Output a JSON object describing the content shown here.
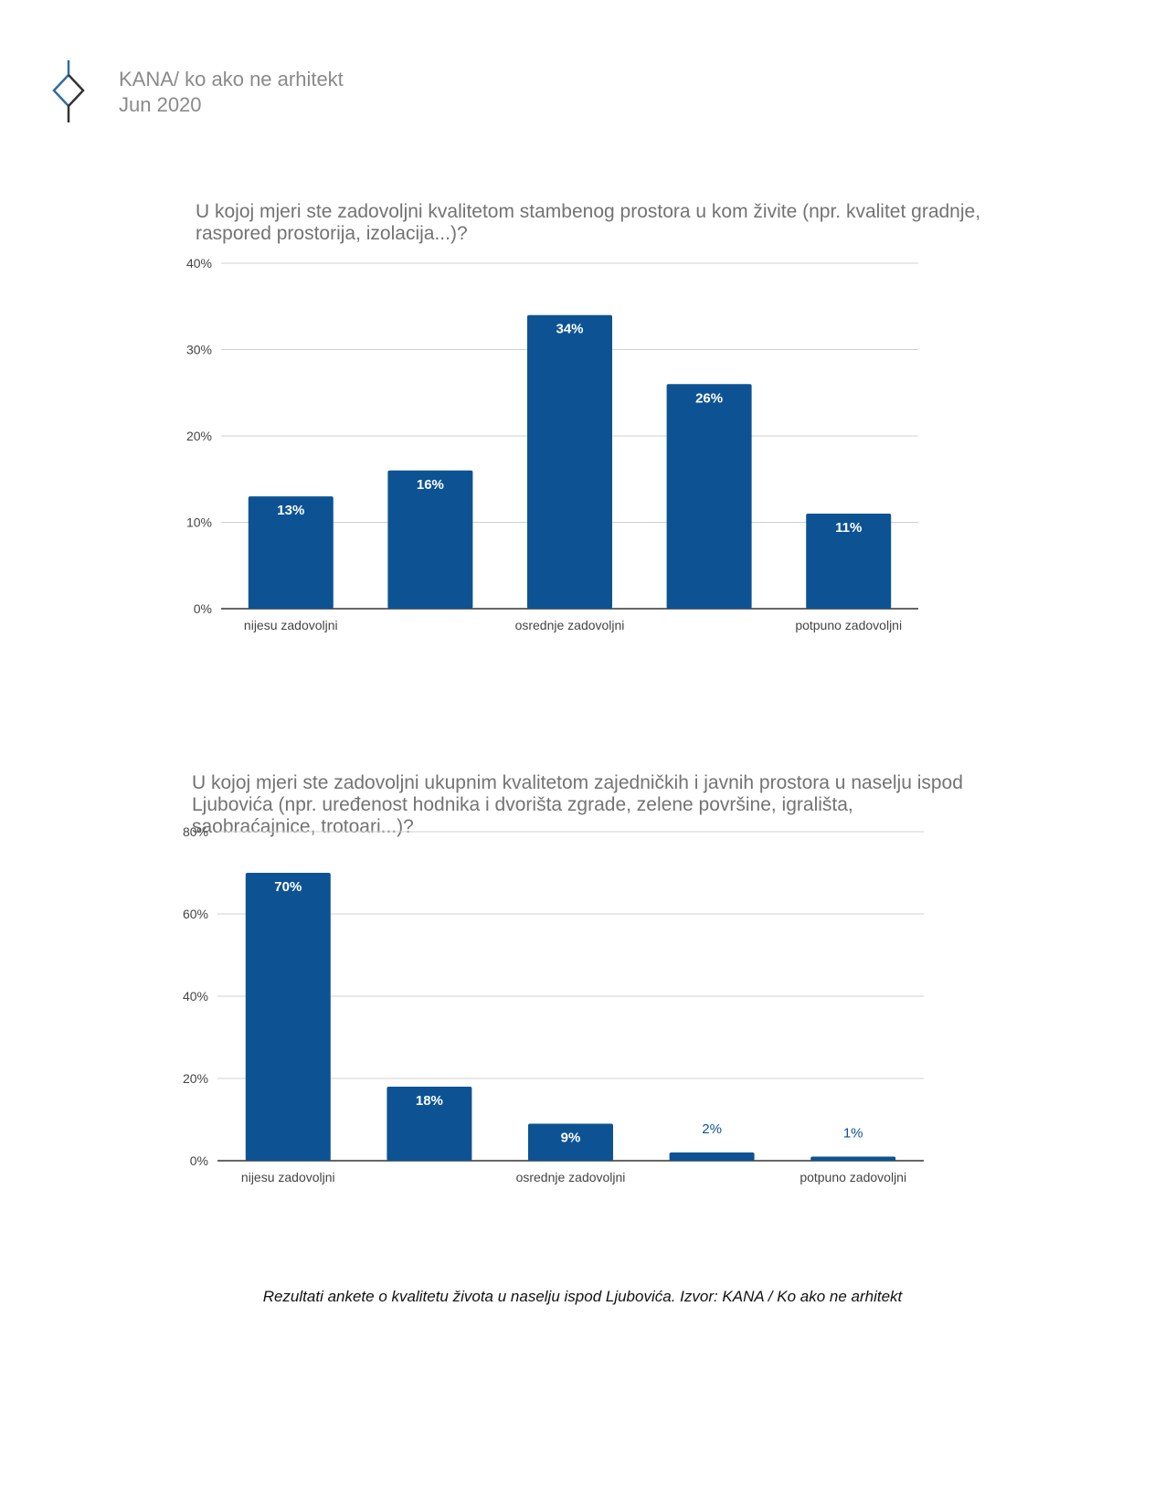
{
  "header": {
    "org": "KANA/ ko ako ne arhitekt",
    "date": "Jun 2020",
    "logo_icon": "kana-diamond-logo-icon"
  },
  "colors": {
    "bar": "#0d5394",
    "grid": "#d0d0d0",
    "axis": "#333333",
    "tick_text": "#444444",
    "label_inside": "#ffffff",
    "label_outside": "#0d5394"
  },
  "chart_data": [
    {
      "type": "bar",
      "title": "U kojoj mjeri ste zadovoljni kvalitetom stambenog prostora u kom živite (npr. kvalitet gradnje, raspored prostorija, izolacija...)?",
      "categories": [
        "nijesu zadovoljni",
        "",
        "osrednje zadovoljni",
        "",
        "potpuno zadovoljni"
      ],
      "values": [
        13,
        16,
        34,
        26,
        11
      ],
      "data_labels": [
        "13%",
        "16%",
        "34%",
        "26%",
        "11%"
      ],
      "yticks": [
        "0%",
        "10%",
        "20%",
        "30%",
        "40%"
      ],
      "ylim": [
        0,
        40
      ],
      "grid": true,
      "legend": "none"
    },
    {
      "type": "bar",
      "title": "U kojoj mjeri ste zadovoljni ukupnim kvalitetom zajedničkih i javnih prostora u naselju ispod Ljubovića (npr. uređenost hodnika i dvorišta zgrade, zelene površine, igrališta, saobraćajnice, trotoari...)?",
      "categories": [
        "nijesu zadovoljni",
        "",
        "osrednje zadovoljni",
        "",
        "potpuno zadovoljni"
      ],
      "values": [
        70,
        18,
        9,
        2,
        1
      ],
      "data_labels": [
        "70%",
        "18%",
        "9%",
        "2%",
        "1%"
      ],
      "yticks": [
        "0%",
        "20%",
        "40%",
        "60%",
        "80%"
      ],
      "ylim": [
        0,
        80
      ],
      "grid": true,
      "legend": "none"
    }
  ],
  "caption": "Rezultati ankete o kvalitetu života u naselju ispod Ljubovića. Izvor: KANA / Ko ako ne arhitekt"
}
